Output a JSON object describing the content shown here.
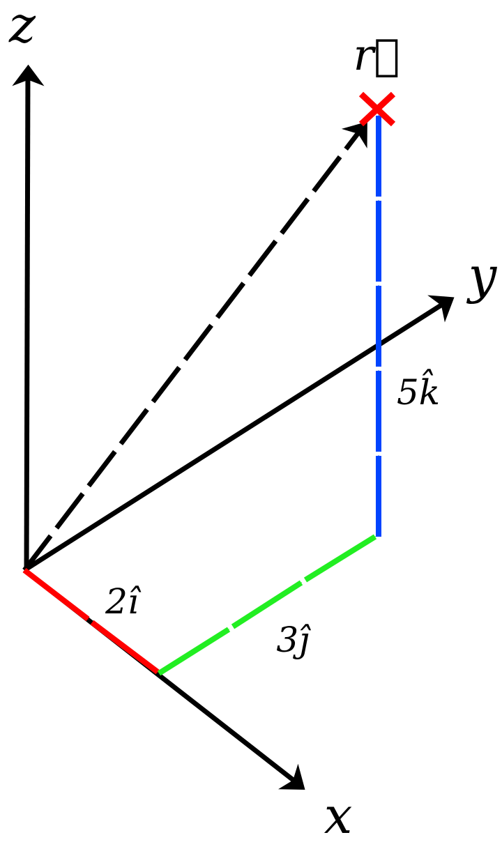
{
  "axes": [
    {
      "label": "z"
    },
    {
      "label": "y"
    },
    {
      "label": "x"
    }
  ],
  "position_vector": {
    "label": "r⃗"
  },
  "components": [
    {
      "label": "2î"
    },
    {
      "label": "3ĵ"
    },
    {
      "label": "5k̂"
    }
  ]
}
